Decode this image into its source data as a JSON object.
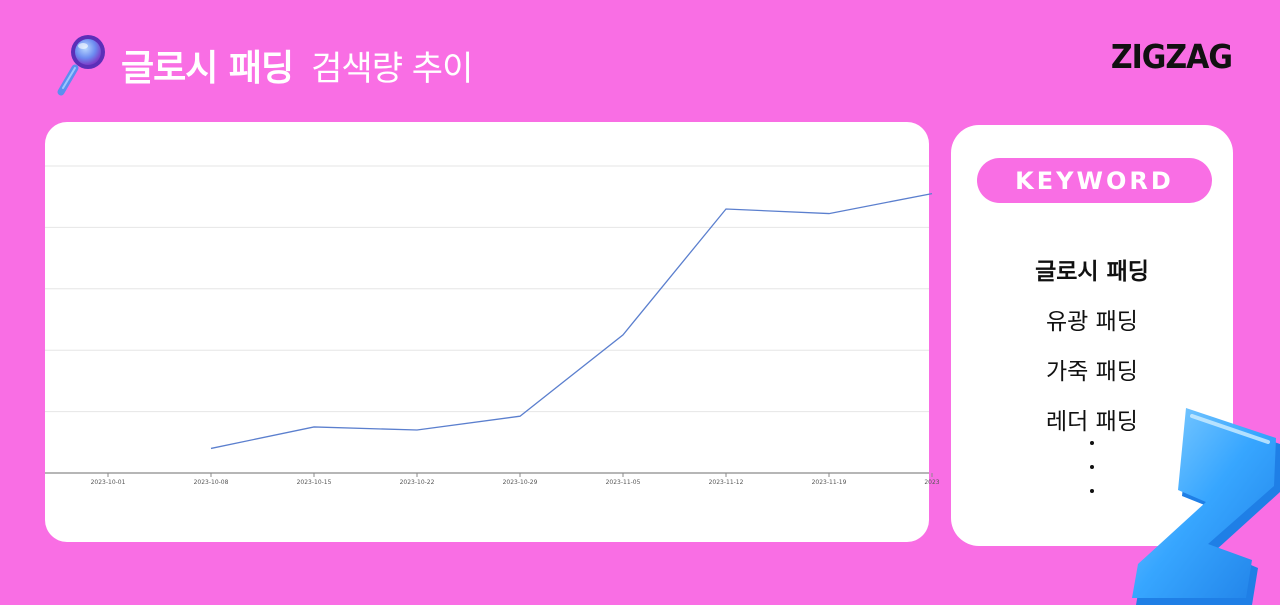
{
  "header": {
    "title_bold": "글로시 패딩",
    "title_regular": "검색량 추이",
    "logo": "ZIGZAG",
    "icon": "magnifier-icon"
  },
  "keywords": {
    "label": "KEYWORD",
    "items": [
      "글로시 패딩",
      "유광 패딩",
      "가죽 패딩",
      "레더 패딩"
    ],
    "active_index": 0
  },
  "colors": {
    "background": "#f96ee4",
    "line": "#5b7fce",
    "pill": "#f96ee4"
  },
  "chart_data": {
    "type": "line",
    "title": "",
    "xlabel": "",
    "ylabel": "",
    "x_ticks": [
      "2023-10-01",
      "2023-10-08",
      "2023-10-15",
      "2023-10-22",
      "2023-10-29",
      "2023-11-05",
      "2023-11-12",
      "2023-11-19",
      "2023"
    ],
    "ylim": [
      0,
      100
    ],
    "grid": true,
    "series": [
      {
        "x": [
          1,
          2,
          3,
          4,
          5,
          6,
          7,
          8.0
        ],
        "values": [
          8,
          15,
          14,
          18.5,
          45,
          86,
          84.5,
          91
        ]
      }
    ]
  }
}
